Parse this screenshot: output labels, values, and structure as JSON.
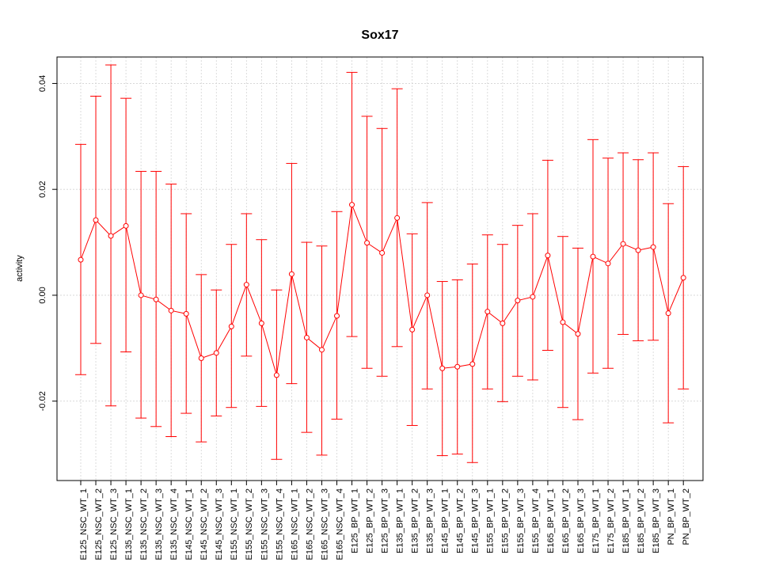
{
  "chart_data": {
    "type": "line",
    "title": "Sox17",
    "xlabel": "",
    "ylabel": "activity",
    "ylim": [
      -0.035,
      0.045
    ],
    "yticks": [
      -0.02,
      0.0,
      0.02,
      0.04
    ],
    "ytick_labels": [
      "-0.02",
      "0.00",
      "0.02",
      "0.04"
    ],
    "grid": true,
    "colors": {
      "series": "#ff0000",
      "grid": "#d3d3d3",
      "axis": "#000000"
    },
    "categories": [
      "E125_NSC_WT_1",
      "E125_NSC_WT_2",
      "E125_NSC_WT_3",
      "E135_NSC_WT_1",
      "E135_NSC_WT_2",
      "E135_NSC_WT_3",
      "E135_NSC_WT_4",
      "E145_NSC_WT_1",
      "E145_NSC_WT_2",
      "E145_NSC_WT_3",
      "E155_NSC_WT_1",
      "E155_NSC_WT_2",
      "E155_NSC_WT_3",
      "E155_NSC_WT_4",
      "E165_NSC_WT_1",
      "E165_NSC_WT_2",
      "E165_NSC_WT_3",
      "E165_NSC_WT_4",
      "E125_BP_WT_1",
      "E125_BP_WT_2",
      "E125_BP_WT_3",
      "E135_BP_WT_1",
      "E135_BP_WT_2",
      "E135_BP_WT_3",
      "E145_BP_WT_1",
      "E145_BP_WT_2",
      "E145_BP_WT_3",
      "E155_BP_WT_1",
      "E155_BP_WT_2",
      "E155_BP_WT_3",
      "E155_BP_WT_4",
      "E165_BP_WT_1",
      "E165_BP_WT_2",
      "E165_BP_WT_3",
      "E175_BP_WT_1",
      "E175_BP_WT_2",
      "E185_BP_WT_1",
      "E185_BP_WT_2",
      "E185_BP_WT_3",
      "PN_BP_WT_1",
      "PN_BP_WT_2"
    ],
    "series": [
      {
        "values": [
          0.0067,
          0.0142,
          0.0112,
          0.0131,
          0.0,
          -0.0008,
          -0.0029,
          -0.0035,
          -0.0119,
          -0.0109,
          -0.0059,
          0.002,
          -0.0053,
          -0.0151,
          0.004,
          -0.008,
          -0.0103,
          -0.0039,
          0.0171,
          0.0099,
          0.008,
          0.0146,
          -0.0065,
          0.0,
          -0.0138,
          -0.0135,
          -0.013,
          -0.0031,
          -0.0053,
          -0.001,
          -0.0003,
          0.0075,
          -0.0051,
          -0.0073,
          0.0073,
          0.006,
          0.0097,
          0.0085,
          0.0091,
          -0.0034,
          0.0033
        ],
        "lower": [
          -0.015,
          -0.0091,
          -0.0209,
          -0.0107,
          -0.0232,
          -0.0248,
          -0.0267,
          -0.0223,
          -0.0277,
          -0.0228,
          -0.0212,
          -0.0115,
          -0.021,
          -0.031,
          -0.0167,
          -0.0259,
          -0.0302,
          -0.0234,
          -0.0078,
          -0.0138,
          -0.0153,
          -0.0097,
          -0.0246,
          -0.0177,
          -0.0303,
          -0.03,
          -0.0316,
          -0.0177,
          -0.0201,
          -0.0153,
          -0.016,
          -0.0104,
          -0.0212,
          -0.0235,
          -0.0147,
          -0.0138,
          -0.0074,
          -0.0086,
          -0.0085,
          -0.0241,
          -0.0177
        ],
        "upper": [
          0.0285,
          0.0376,
          0.0435,
          0.0372,
          0.0234,
          0.0234,
          0.021,
          0.0154,
          0.0039,
          0.001,
          0.0096,
          0.0154,
          0.0105,
          0.001,
          0.0249,
          0.01,
          0.0093,
          0.0158,
          0.0421,
          0.0338,
          0.0315,
          0.039,
          0.0116,
          0.0175,
          0.0026,
          0.0029,
          0.0059,
          0.0114,
          0.0096,
          0.0132,
          0.0154,
          0.0255,
          0.0111,
          0.0089,
          0.0294,
          0.0259,
          0.0269,
          0.0256,
          0.0269,
          0.0173,
          0.0243
        ]
      }
    ]
  }
}
